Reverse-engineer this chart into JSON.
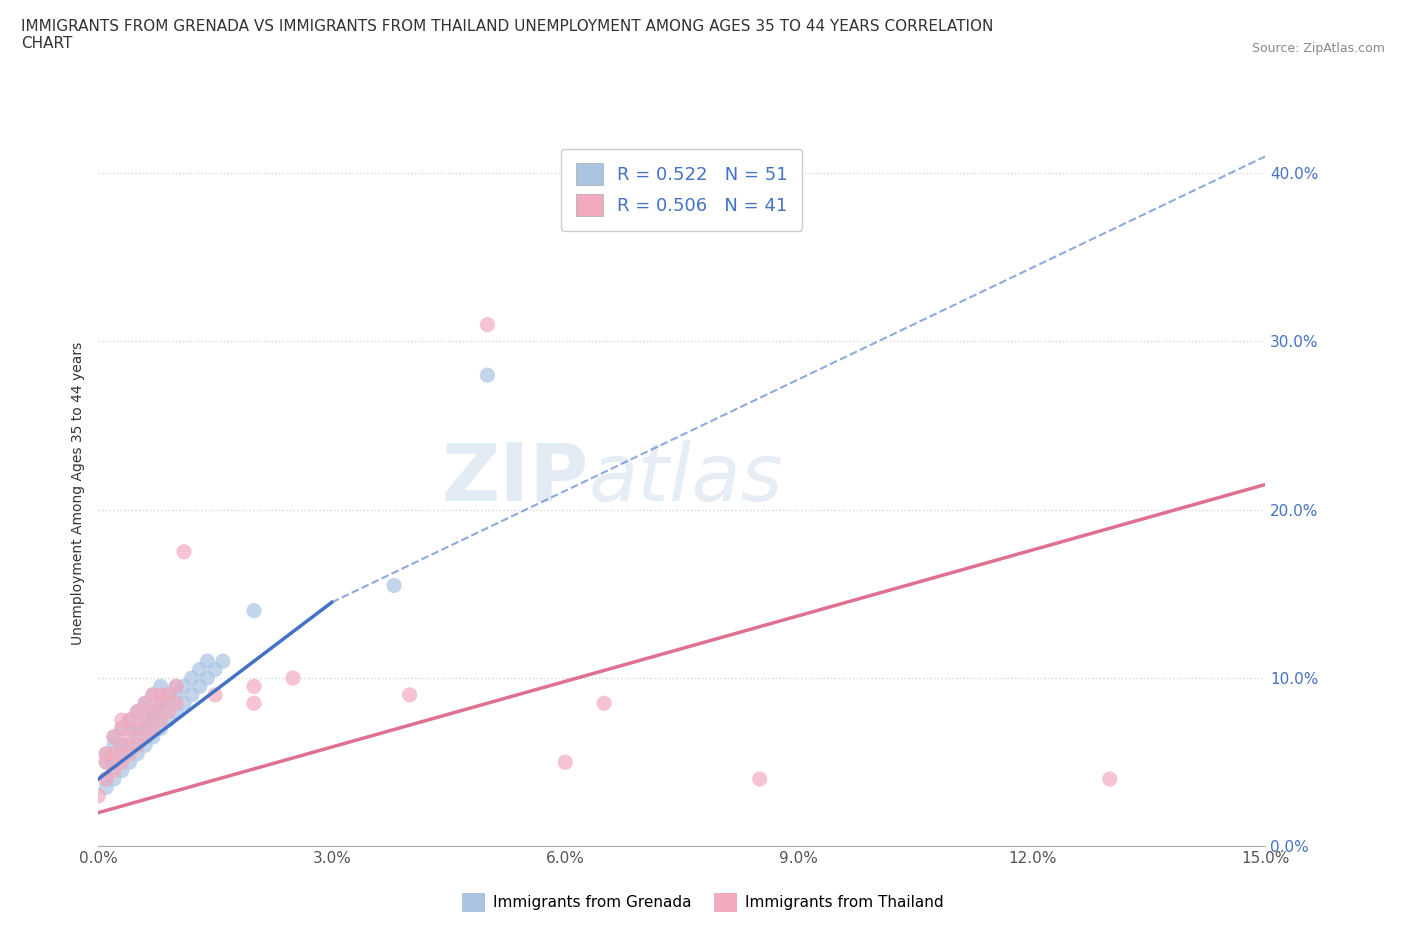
{
  "title": "IMMIGRANTS FROM GRENADA VS IMMIGRANTS FROM THAILAND UNEMPLOYMENT AMONG AGES 35 TO 44 YEARS CORRELATION\nCHART",
  "source_text": "Source: ZipAtlas.com",
  "ylabel": "Unemployment Among Ages 35 to 44 years",
  "xlim": [
    0.0,
    0.15
  ],
  "ylim": [
    0.0,
    0.42
  ],
  "xticks": [
    0.0,
    0.03,
    0.06,
    0.09,
    0.12,
    0.15
  ],
  "xtick_labels": [
    "0.0%",
    "3.0%",
    "6.0%",
    "9.0%",
    "12.0%",
    "15.0%"
  ],
  "ytick_labels": [
    "0.0%",
    "10.0%",
    "20.0%",
    "30.0%",
    "40.0%"
  ],
  "yticks": [
    0.0,
    0.1,
    0.2,
    0.3,
    0.4
  ],
  "watermark_zip": "ZIP",
  "watermark_atlas": "atlas",
  "legend_grenada": "R = 0.522   N = 51",
  "legend_thailand": "R = 0.506   N = 41",
  "grenada_color": "#aac4e2",
  "thailand_color": "#f2aabe",
  "grenada_line_color": "#4472c4",
  "thailand_line_color": "#e07090",
  "legend_text_color": "#4472c4",
  "grenada_scatter": [
    [
      0.001,
      0.035
    ],
    [
      0.001,
      0.04
    ],
    [
      0.001,
      0.05
    ],
    [
      0.001,
      0.055
    ],
    [
      0.002,
      0.04
    ],
    [
      0.002,
      0.05
    ],
    [
      0.002,
      0.06
    ],
    [
      0.002,
      0.065
    ],
    [
      0.003,
      0.045
    ],
    [
      0.003,
      0.055
    ],
    [
      0.003,
      0.06
    ],
    [
      0.003,
      0.07
    ],
    [
      0.004,
      0.05
    ],
    [
      0.004,
      0.06
    ],
    [
      0.004,
      0.07
    ],
    [
      0.004,
      0.075
    ],
    [
      0.005,
      0.055
    ],
    [
      0.005,
      0.065
    ],
    [
      0.005,
      0.07
    ],
    [
      0.005,
      0.08
    ],
    [
      0.006,
      0.06
    ],
    [
      0.006,
      0.07
    ],
    [
      0.006,
      0.075
    ],
    [
      0.006,
      0.085
    ],
    [
      0.007,
      0.065
    ],
    [
      0.007,
      0.075
    ],
    [
      0.007,
      0.08
    ],
    [
      0.007,
      0.09
    ],
    [
      0.008,
      0.07
    ],
    [
      0.008,
      0.08
    ],
    [
      0.008,
      0.085
    ],
    [
      0.008,
      0.095
    ],
    [
      0.009,
      0.075
    ],
    [
      0.009,
      0.085
    ],
    [
      0.009,
      0.09
    ],
    [
      0.01,
      0.08
    ],
    [
      0.01,
      0.09
    ],
    [
      0.01,
      0.095
    ],
    [
      0.011,
      0.085
    ],
    [
      0.011,
      0.095
    ],
    [
      0.012,
      0.09
    ],
    [
      0.012,
      0.1
    ],
    [
      0.013,
      0.095
    ],
    [
      0.013,
      0.105
    ],
    [
      0.014,
      0.1
    ],
    [
      0.014,
      0.11
    ],
    [
      0.015,
      0.105
    ],
    [
      0.016,
      0.11
    ],
    [
      0.02,
      0.14
    ],
    [
      0.038,
      0.155
    ],
    [
      0.05,
      0.28
    ]
  ],
  "thailand_scatter": [
    [
      0.0,
      0.03
    ],
    [
      0.001,
      0.04
    ],
    [
      0.001,
      0.05
    ],
    [
      0.001,
      0.055
    ],
    [
      0.002,
      0.045
    ],
    [
      0.002,
      0.055
    ],
    [
      0.002,
      0.065
    ],
    [
      0.003,
      0.05
    ],
    [
      0.003,
      0.06
    ],
    [
      0.003,
      0.07
    ],
    [
      0.003,
      0.075
    ],
    [
      0.004,
      0.055
    ],
    [
      0.004,
      0.065
    ],
    [
      0.004,
      0.075
    ],
    [
      0.005,
      0.06
    ],
    [
      0.005,
      0.07
    ],
    [
      0.005,
      0.08
    ],
    [
      0.006,
      0.065
    ],
    [
      0.006,
      0.075
    ],
    [
      0.006,
      0.085
    ],
    [
      0.007,
      0.07
    ],
    [
      0.007,
      0.08
    ],
    [
      0.007,
      0.09
    ],
    [
      0.008,
      0.075
    ],
    [
      0.008,
      0.085
    ],
    [
      0.008,
      0.09
    ],
    [
      0.009,
      0.08
    ],
    [
      0.009,
      0.09
    ],
    [
      0.01,
      0.085
    ],
    [
      0.01,
      0.095
    ],
    [
      0.011,
      0.175
    ],
    [
      0.015,
      0.09
    ],
    [
      0.02,
      0.085
    ],
    [
      0.02,
      0.095
    ],
    [
      0.025,
      0.1
    ],
    [
      0.04,
      0.09
    ],
    [
      0.05,
      0.31
    ],
    [
      0.06,
      0.05
    ],
    [
      0.065,
      0.085
    ],
    [
      0.085,
      0.04
    ],
    [
      0.13,
      0.04
    ]
  ],
  "grenada_trendline_solid": [
    [
      0.0,
      0.04
    ],
    [
      0.03,
      0.145
    ]
  ],
  "grenada_trendline_dashed": [
    [
      0.03,
      0.145
    ],
    [
      0.15,
      0.41
    ]
  ],
  "thailand_trendline": [
    [
      0.0,
      0.02
    ],
    [
      0.15,
      0.215
    ]
  ],
  "background_color": "#ffffff",
  "grid_color": "#d8d8d8"
}
